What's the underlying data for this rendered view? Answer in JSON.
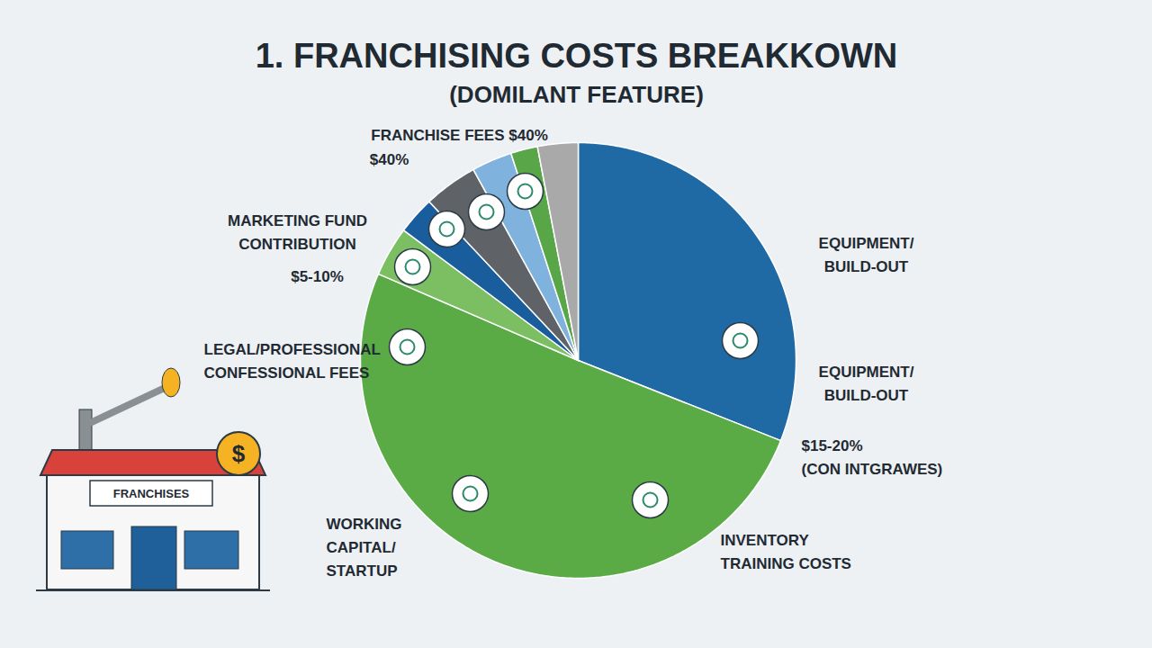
{
  "chart_data": {
    "type": "pie",
    "title": "1. FRANCHISING COSTS BREAKKOWN",
    "subtitle": "(DOMILANT FEATURE)",
    "values": [
      31,
      50.5,
      3.7,
      2.8,
      4,
      3,
      2,
      3
    ],
    "colors": [
      "#1f6aa5",
      "#5aab46",
      "#7cbf63",
      "#1a5d9c",
      "#5f6368",
      "#7fb3dd",
      "#58a648",
      "#a9a9a9"
    ],
    "annotations": [
      "FRANCHISE FEES $40%",
      "$40%",
      "MARKETING FUND CONTRIBUTION",
      "$5-10%",
      "LEGAL/PROFESSIONAL CONFESSIONAL FEES",
      "EQUIPMENT/ BUILD-OUT",
      "EQUIPMENT/ BUILD-OUT",
      "$15-20% (CON INTGRAWES)",
      "WORKING CAPITAL/ STARTUP",
      "INVENTORY TRAINING COSTS",
      "FRANCHISES",
      "$"
    ]
  }
}
